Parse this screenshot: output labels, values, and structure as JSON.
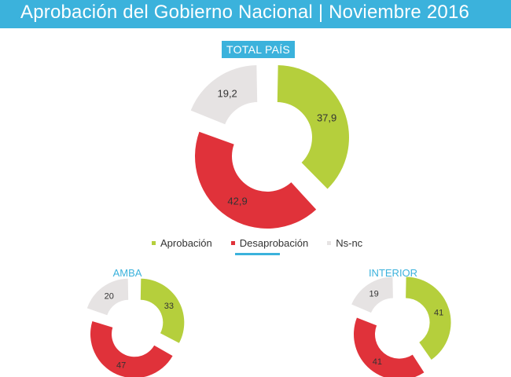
{
  "header": {
    "title": "Aprobación del Gobierno Nacional | Noviembre 2016"
  },
  "chart_data": [
    {
      "type": "pie",
      "title": "TOTAL PAÍS",
      "categories": [
        "Aprobación",
        "Desaprobación",
        "Ns-nc"
      ],
      "values": [
        37.9,
        42.9,
        19.2
      ],
      "labels": [
        "37,9",
        "42,9",
        "19,2"
      ],
      "colors": [
        "#b5cf3c",
        "#e0323a",
        "#e6e3e3"
      ],
      "legend": "bottom"
    },
    {
      "type": "pie",
      "title": "AMBA",
      "categories": [
        "Aprobación",
        "Desaprobación",
        "Ns-nc"
      ],
      "values": [
        33,
        47,
        20
      ],
      "labels": [
        "33",
        "47",
        "20"
      ],
      "colors": [
        "#b5cf3c",
        "#e0323a",
        "#e6e3e3"
      ]
    },
    {
      "type": "pie",
      "title": "INTERIOR",
      "categories": [
        "Aprobación",
        "Desaprobación",
        "Ns-nc"
      ],
      "values": [
        41,
        41,
        19
      ],
      "labels": [
        "41",
        "41",
        "19"
      ],
      "colors": [
        "#b5cf3c",
        "#e0323a",
        "#e6e3e3"
      ]
    }
  ],
  "legend": {
    "items": [
      {
        "label": "Aprobación",
        "color": "#b5cf3c"
      },
      {
        "label": "Desaprobación",
        "color": "#e0323a"
      },
      {
        "label": "Ns-nc",
        "color": "#e6e3e3"
      }
    ]
  }
}
